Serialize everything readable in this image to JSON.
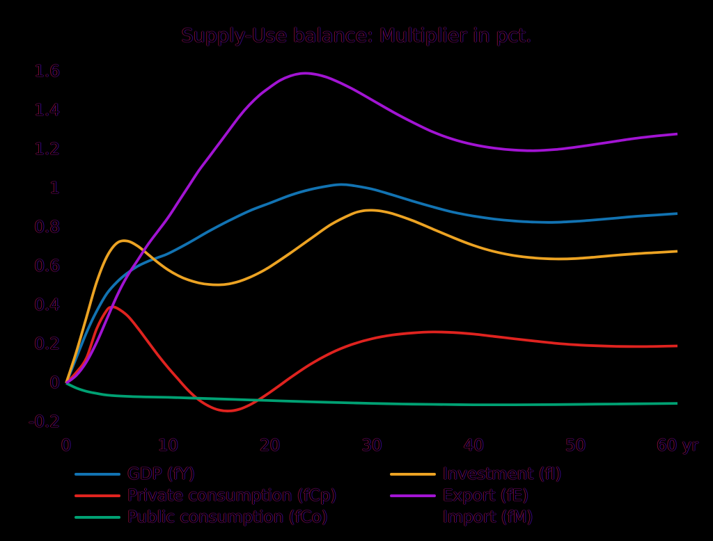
{
  "chart_data": {
    "type": "line",
    "title": "Supply-Use balance: Multiplier in pct.",
    "xlabel": "",
    "ylabel": "",
    "x_unit": "yr",
    "xlim": [
      0,
      60
    ],
    "ylim": [
      -0.28,
      1.68
    ],
    "grid": false,
    "legend_position": "bottom, two columns",
    "background_color": "#000000",
    "x_ticks": [
      {
        "value": 0,
        "label": "0"
      },
      {
        "value": 10,
        "label": "10"
      },
      {
        "value": 20,
        "label": "20"
      },
      {
        "value": 30,
        "label": "30"
      },
      {
        "value": 40,
        "label": "40"
      },
      {
        "value": 50,
        "label": "50"
      },
      {
        "value": 60,
        "label": "60 yr"
      }
    ],
    "y_ticks": [
      {
        "value": 1.6,
        "label": "1.6"
      },
      {
        "value": 1.4,
        "label": "1.4"
      },
      {
        "value": 1.2,
        "label": "1.2"
      },
      {
        "value": 1,
        "label": "1"
      },
      {
        "value": 0.8,
        "label": "0.8"
      },
      {
        "value": 0.6,
        "label": "0.6"
      },
      {
        "value": 0.4,
        "label": "0.4"
      },
      {
        "value": 0.2,
        "label": "0.2"
      },
      {
        "value": 0,
        "label": "0"
      },
      {
        "value": -0.2,
        "label": "-0.2"
      }
    ],
    "series": [
      {
        "name": "GDP (fY)",
        "color": "#1273b2",
        "visible": true,
        "points": [
          [
            0,
            0
          ],
          [
            1,
            0.13
          ],
          [
            2,
            0.26
          ],
          [
            3,
            0.37
          ],
          [
            4,
            0.46
          ],
          [
            5,
            0.52
          ],
          [
            6,
            0.565
          ],
          [
            7,
            0.6
          ],
          [
            8,
            0.625
          ],
          [
            9,
            0.645
          ],
          [
            10,
            0.665
          ],
          [
            12,
            0.72
          ],
          [
            14,
            0.78
          ],
          [
            16,
            0.835
          ],
          [
            18,
            0.885
          ],
          [
            20,
            0.925
          ],
          [
            22,
            0.965
          ],
          [
            24,
            0.995
          ],
          [
            26,
            1.015
          ],
          [
            27,
            1.02
          ],
          [
            28,
            1.016
          ],
          [
            30,
            0.997
          ],
          [
            32,
            0.967
          ],
          [
            34,
            0.935
          ],
          [
            36,
            0.905
          ],
          [
            38,
            0.878
          ],
          [
            40,
            0.858
          ],
          [
            42,
            0.843
          ],
          [
            44,
            0.833
          ],
          [
            46,
            0.827
          ],
          [
            48,
            0.826
          ],
          [
            50,
            0.831
          ],
          [
            52,
            0.839
          ],
          [
            54,
            0.848
          ],
          [
            56,
            0.857
          ],
          [
            58,
            0.864
          ],
          [
            60,
            0.871
          ]
        ]
      },
      {
        "name": "Private consumption (fCp)",
        "color": "#df231f",
        "visible": true,
        "points": [
          [
            0,
            0
          ],
          [
            1,
            0.055
          ],
          [
            2,
            0.13
          ],
          [
            3,
            0.28
          ],
          [
            4,
            0.375
          ],
          [
            4.5,
            0.39
          ],
          [
            5,
            0.385
          ],
          [
            6,
            0.347
          ],
          [
            7,
            0.285
          ],
          [
            8,
            0.215
          ],
          [
            9,
            0.145
          ],
          [
            10,
            0.08
          ],
          [
            11,
            0.02
          ],
          [
            12,
            -0.038
          ],
          [
            13,
            -0.085
          ],
          [
            14,
            -0.118
          ],
          [
            15,
            -0.138
          ],
          [
            16,
            -0.143
          ],
          [
            17,
            -0.134
          ],
          [
            18,
            -0.112
          ],
          [
            19,
            -0.082
          ],
          [
            20,
            -0.047
          ],
          [
            21,
            -0.01
          ],
          [
            22,
            0.028
          ],
          [
            24,
            0.098
          ],
          [
            26,
            0.155
          ],
          [
            28,
            0.198
          ],
          [
            30,
            0.228
          ],
          [
            32,
            0.247
          ],
          [
            34,
            0.258
          ],
          [
            36,
            0.263
          ],
          [
            38,
            0.26
          ],
          [
            40,
            0.252
          ],
          [
            42,
            0.24
          ],
          [
            44,
            0.228
          ],
          [
            46,
            0.216
          ],
          [
            48,
            0.205
          ],
          [
            50,
            0.197
          ],
          [
            52,
            0.192
          ],
          [
            54,
            0.189
          ],
          [
            56,
            0.188
          ],
          [
            58,
            0.189
          ],
          [
            60,
            0.191
          ]
        ]
      },
      {
        "name": "Public consumption (fCo)",
        "color": "#00a173",
        "visible": true,
        "points": [
          [
            0,
            0
          ],
          [
            1,
            -0.025
          ],
          [
            2,
            -0.042
          ],
          [
            3,
            -0.053
          ],
          [
            4,
            -0.061
          ],
          [
            6,
            -0.068
          ],
          [
            8,
            -0.071
          ],
          [
            10,
            -0.073
          ],
          [
            12,
            -0.076
          ],
          [
            15,
            -0.081
          ],
          [
            18,
            -0.086
          ],
          [
            21,
            -0.091
          ],
          [
            24,
            -0.096
          ],
          [
            27,
            -0.1
          ],
          [
            30,
            -0.104
          ],
          [
            33,
            -0.107
          ],
          [
            36,
            -0.109
          ],
          [
            40,
            -0.111
          ],
          [
            44,
            -0.111
          ],
          [
            48,
            -0.11
          ],
          [
            52,
            -0.108
          ],
          [
            56,
            -0.106
          ],
          [
            60,
            -0.104
          ]
        ]
      },
      {
        "name": "Investment (fI)",
        "color": "#eca323",
        "visible": true,
        "points": [
          [
            0,
            0
          ],
          [
            1,
            0.16
          ],
          [
            2,
            0.34
          ],
          [
            3,
            0.52
          ],
          [
            4,
            0.65
          ],
          [
            5,
            0.72
          ],
          [
            6,
            0.73
          ],
          [
            7,
            0.705
          ],
          [
            8,
            0.663
          ],
          [
            9,
            0.62
          ],
          [
            10,
            0.582
          ],
          [
            11,
            0.552
          ],
          [
            12,
            0.53
          ],
          [
            13,
            0.515
          ],
          [
            14,
            0.507
          ],
          [
            15,
            0.505
          ],
          [
            16,
            0.51
          ],
          [
            17,
            0.523
          ],
          [
            18,
            0.543
          ],
          [
            19,
            0.568
          ],
          [
            20,
            0.598
          ],
          [
            22,
            0.668
          ],
          [
            24,
            0.742
          ],
          [
            26,
            0.815
          ],
          [
            28,
            0.868
          ],
          [
            29,
            0.884
          ],
          [
            30,
            0.888
          ],
          [
            31,
            0.883
          ],
          [
            32,
            0.871
          ],
          [
            34,
            0.835
          ],
          [
            36,
            0.791
          ],
          [
            38,
            0.747
          ],
          [
            40,
            0.707
          ],
          [
            42,
            0.676
          ],
          [
            44,
            0.655
          ],
          [
            46,
            0.643
          ],
          [
            48,
            0.638
          ],
          [
            50,
            0.64
          ],
          [
            52,
            0.648
          ],
          [
            54,
            0.657
          ],
          [
            56,
            0.665
          ],
          [
            58,
            0.671
          ],
          [
            60,
            0.677
          ]
        ]
      },
      {
        "name": "Export (fE)",
        "color": "#a214d3",
        "visible": true,
        "points": [
          [
            0,
            0
          ],
          [
            1,
            0.04
          ],
          [
            2,
            0.11
          ],
          [
            3,
            0.21
          ],
          [
            4,
            0.33
          ],
          [
            5,
            0.45
          ],
          [
            6,
            0.55
          ],
          [
            7,
            0.63
          ],
          [
            8,
            0.71
          ],
          [
            9,
            0.78
          ],
          [
            10,
            0.85
          ],
          [
            11,
            0.93
          ],
          [
            12,
            1.01
          ],
          [
            13,
            1.09
          ],
          [
            14,
            1.16
          ],
          [
            15,
            1.23
          ],
          [
            16,
            1.3
          ],
          [
            17,
            1.37
          ],
          [
            18,
            1.43
          ],
          [
            19,
            1.48
          ],
          [
            20,
            1.52
          ],
          [
            21,
            1.555
          ],
          [
            22,
            1.578
          ],
          [
            23,
            1.59
          ],
          [
            24,
            1.59
          ],
          [
            25,
            1.58
          ],
          [
            26,
            1.563
          ],
          [
            28,
            1.514
          ],
          [
            30,
            1.455
          ],
          [
            32,
            1.395
          ],
          [
            34,
            1.34
          ],
          [
            36,
            1.29
          ],
          [
            38,
            1.252
          ],
          [
            40,
            1.225
          ],
          [
            42,
            1.207
          ],
          [
            44,
            1.197
          ],
          [
            46,
            1.194
          ],
          [
            48,
            1.2
          ],
          [
            50,
            1.212
          ],
          [
            52,
            1.227
          ],
          [
            54,
            1.243
          ],
          [
            56,
            1.258
          ],
          [
            58,
            1.27
          ],
          [
            60,
            1.28
          ]
        ]
      },
      {
        "name": "Import (fM)",
        "color": "#000000",
        "visible": false,
        "points": []
      }
    ],
    "legend_columns": [
      [
        "GDP (fY)",
        "Private consumption (fCp)",
        "Public consumption (fCo)"
      ],
      [
        "Investment (fI)",
        "Export (fE)",
        "Import (fM)"
      ]
    ]
  }
}
